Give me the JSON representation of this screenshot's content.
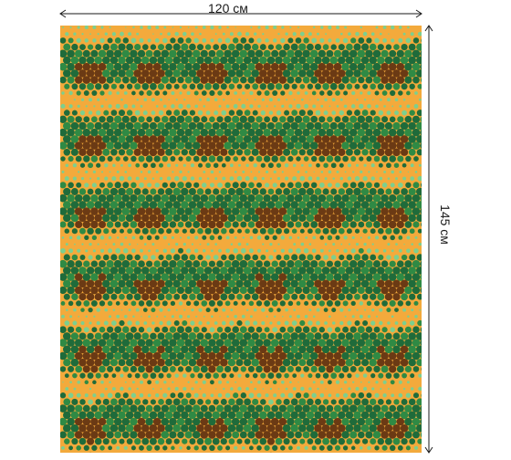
{
  "dimensions": {
    "width_label": "120 см",
    "height_label": "145 см"
  },
  "pattern": {
    "name": "green-dot-chevron-tablecloth",
    "colors": {
      "background": "#f3aa3c",
      "band_light": "#f7c35a",
      "dot_dark_green": "#1f6b3a",
      "dot_mid_green": "#2f8a44",
      "dot_light_green": "#7ccf8f",
      "dot_brown": "#6b3a14"
    }
  }
}
